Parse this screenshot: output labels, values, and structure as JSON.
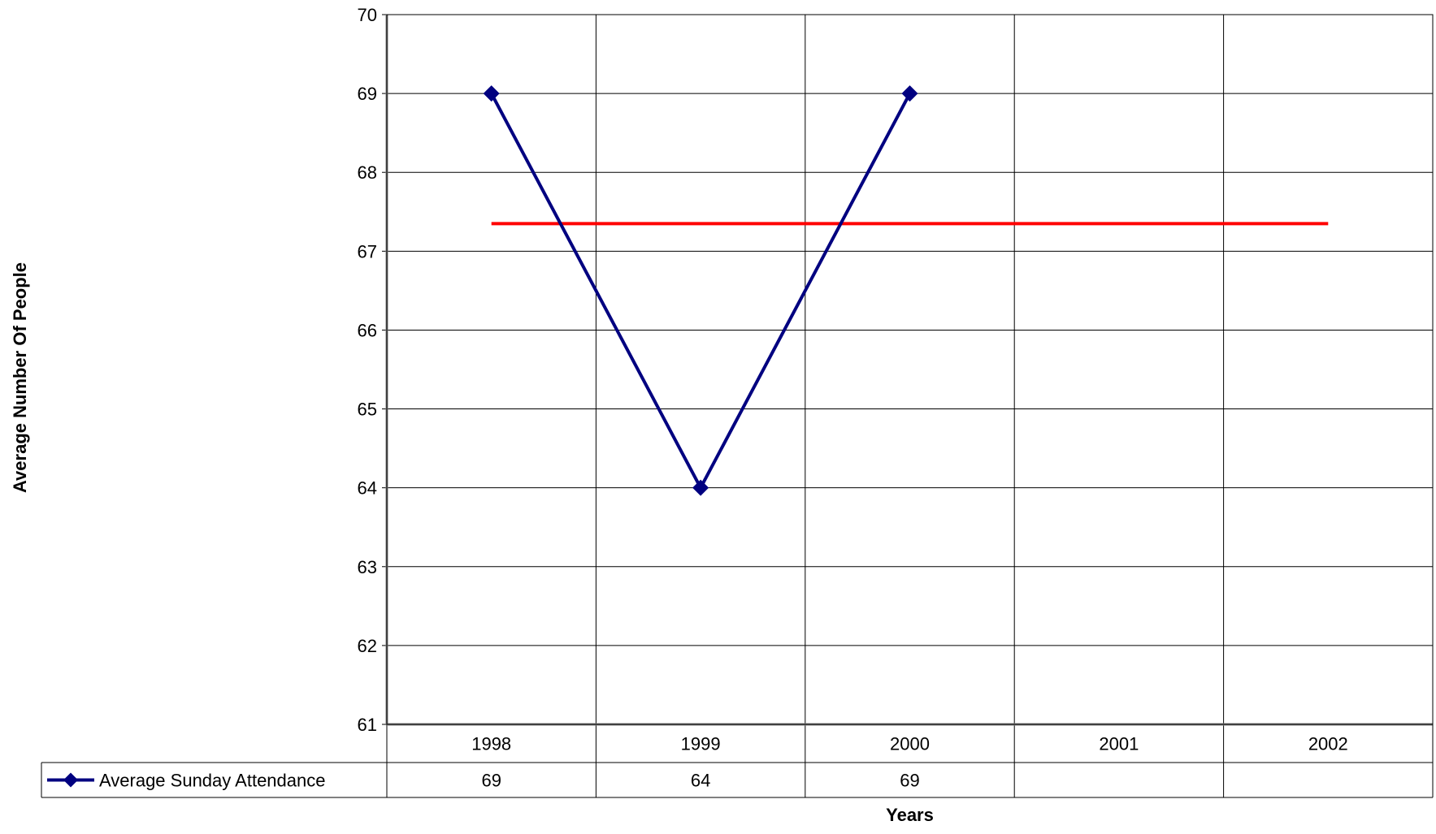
{
  "chart_data": {
    "type": "line",
    "title": "",
    "xlabel": "Years",
    "ylabel": "Average Number Of People",
    "categories": [
      "1998",
      "1999",
      "2000",
      "2001",
      "2002"
    ],
    "ylim": [
      61,
      70
    ],
    "yticks": [
      61,
      62,
      63,
      64,
      65,
      66,
      67,
      68,
      69,
      70
    ],
    "grid": true,
    "legend": "data-table-bottom",
    "series": [
      {
        "name": "Average Sunday Attendance",
        "values": [
          69,
          64,
          69,
          null,
          null
        ],
        "color": "#000080",
        "marker": "diamond"
      }
    ],
    "reference_line": {
      "value": 67.35,
      "color": "#ff0000"
    },
    "data_table": {
      "rows": [
        {
          "label": "Average Sunday Attendance",
          "cells": [
            "69",
            "64",
            "69",
            "",
            ""
          ]
        }
      ]
    }
  }
}
